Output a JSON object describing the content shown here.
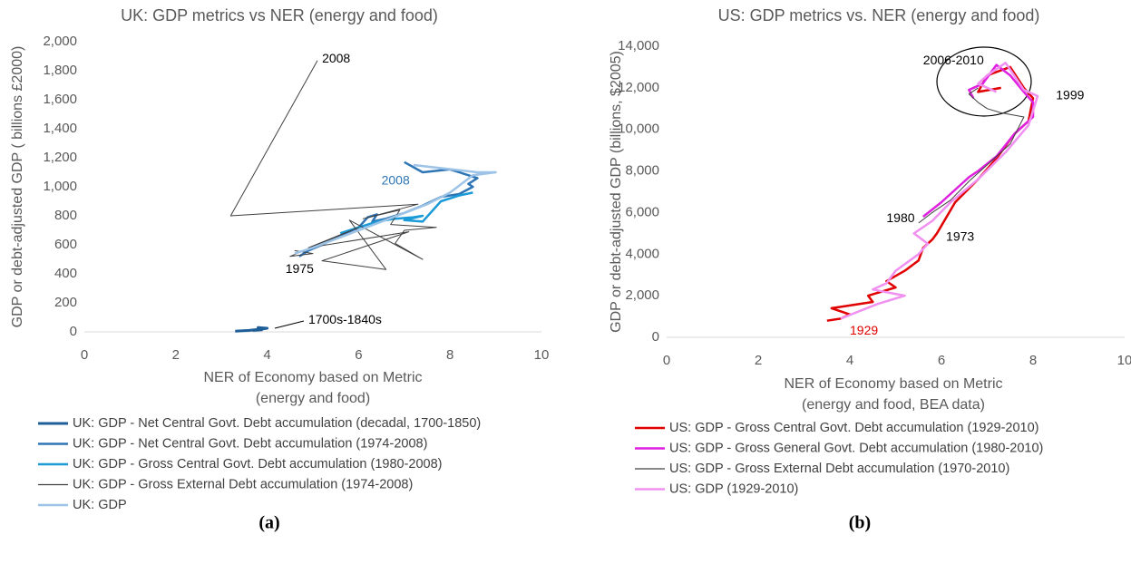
{
  "chart_data": [
    {
      "type": "line",
      "title": "UK: GDP metrics vs NER (energy and food)",
      "xlabel": [
        "NER of Economy based on Metric",
        "(energy and food)"
      ],
      "ylabel": "GDP or debt-adjusted GDP ( billions £2000)",
      "xlim": [
        0,
        10
      ],
      "xticks": [
        0,
        2,
        4,
        6,
        8,
        10
      ],
      "ylim": [
        0,
        2000
      ],
      "yticks": [
        0,
        200,
        400,
        600,
        800,
        {
          "value": 1000,
          "label": "1,000"
        },
        {
          "value": 1200,
          "label": "1,200"
        },
        {
          "value": 1400,
          "label": "1,400"
        },
        {
          "value": 1600,
          "label": "1,600"
        },
        {
          "value": 1800,
          "label": "1,800"
        },
        {
          "value": 2000,
          "label": "2,000"
        }
      ],
      "grid": false,
      "series": [
        {
          "name": "UK: GDP - Net Central Govt. Debt accumulation (decadal, 1700-1850)",
          "color": "#1f5f99",
          "width": 3,
          "x": [
            3.3,
            3.6,
            3.9,
            3.8,
            4.0,
            3.7,
            3.9
          ],
          "values": [
            5,
            10,
            20,
            30,
            25,
            10,
            15
          ]
        },
        {
          "name": "UK: GDP - Net Central Govt. Debt accumulation (1974-2008)",
          "color": "#2e75b6",
          "width": 2.5,
          "x": [
            4.7,
            4.9,
            5.2,
            5.5,
            6.0,
            6.2,
            6.4,
            6.3,
            6.6,
            7.0,
            7.4,
            7.8,
            8.2,
            8.5,
            8.4,
            8.6,
            8.0,
            7.4,
            7.0
          ],
          "values": [
            520,
            560,
            600,
            650,
            720,
            790,
            810,
            760,
            780,
            820,
            870,
            930,
            950,
            1000,
            1020,
            1060,
            1120,
            1100,
            1170
          ]
        },
        {
          "name": "UK: GDP - Gross Central Govt. Debt accumulation (1980-2008)",
          "color": "#1a9ad6",
          "width": 2.5,
          "x": [
            5.6,
            6.0,
            6.4,
            6.8,
            7.2,
            7.4,
            7.0,
            7.4,
            7.8,
            8.2,
            8.5
          ],
          "values": [
            680,
            720,
            760,
            780,
            790,
            800,
            770,
            760,
            900,
            940,
            960
          ]
        },
        {
          "name": "UK: GDP - Gross External Debt accumulation (1974-2008)",
          "color": "#404040",
          "width": 1,
          "x": [
            4.6,
            5.0,
            4.5,
            6.0,
            4.9,
            7.1,
            5.2,
            6.6,
            5.8,
            7.4,
            6.8,
            7.0,
            7.7,
            6.7,
            6.9,
            6.1,
            7.3,
            3.2,
            5.1
          ],
          "values": [
            560,
            540,
            520,
            720,
            580,
            690,
            490,
            430,
            770,
            500,
            610,
            700,
            720,
            740,
            840,
            780,
            880,
            800,
            1870
          ]
        },
        {
          "name": "UK: GDP",
          "color": "#9dc3e6",
          "width": 2.5,
          "x": [
            4.6,
            5.0,
            5.5,
            6.0,
            6.5,
            7.0,
            7.5,
            8.0,
            8.5,
            9.0,
            8.6,
            7.2
          ],
          "values": [
            540,
            580,
            640,
            700,
            760,
            820,
            880,
            960,
            1080,
            1100,
            1100,
            1150
          ]
        }
      ],
      "annotations": [
        {
          "text": "2008",
          "x": 5.2,
          "y": 1880
        },
        {
          "text": "2008",
          "x": 6.5,
          "y": 1040,
          "color": "#2e75b6"
        },
        {
          "text": "1975",
          "x": 4.4,
          "y": 430
        },
        {
          "text": "1700s-1840s",
          "x": 4.9,
          "y": 80
        }
      ]
    },
    {
      "type": "line",
      "title": "US: GDP metrics vs. NER (energy and food)",
      "xlabel": [
        "NER of Economy based on Metric",
        "(energy and food, BEA data)"
      ],
      "ylabel": "GDP or debt-adjusted GDP (billions, $2005)",
      "xlim": [
        0,
        10
      ],
      "xticks": [
        0,
        2,
        4,
        6,
        8,
        10
      ],
      "ylim": [
        0,
        14000
      ],
      "yticks": [
        0,
        {
          "value": 2000,
          "label": "2,000"
        },
        {
          "value": 4000,
          "label": "4,000"
        },
        {
          "value": 6000,
          "label": "6,000"
        },
        {
          "value": 8000,
          "label": "8,000"
        },
        {
          "value": 10000,
          "label": "10,000"
        },
        {
          "value": 12000,
          "label": "12,000"
        },
        {
          "value": 14000,
          "label": "14,000"
        }
      ],
      "grid": false,
      "series": [
        {
          "name": "US: GDP - Gross Central Govt. Debt accumulation (1929-2010)",
          "color": "#e00000",
          "width": 2.5,
          "x": [
            3.5,
            3.8,
            4.0,
            3.6,
            3.9,
            4.5,
            4.4,
            5.0,
            4.8,
            5.2,
            5.5,
            5.6,
            5.8,
            5.9,
            6.3,
            6.8,
            7.2,
            7.6,
            7.9,
            8.0,
            7.8,
            7.5,
            7.0,
            6.8,
            7.3
          ],
          "values": [
            800,
            900,
            1100,
            1400,
            1500,
            1700,
            2000,
            2400,
            2700,
            3200,
            3700,
            4300,
            4700,
            5000,
            6500,
            7600,
            8600,
            9800,
            10400,
            11500,
            12000,
            13000,
            12600,
            11800,
            12000
          ]
        },
        {
          "name": "US: GDP - Gross General Govt. Debt accumulation (1980-2010)",
          "color": "#e020e0",
          "width": 2.5,
          "x": [
            5.6,
            6.0,
            6.5,
            6.6,
            6.8,
            7.2,
            7.6,
            8.0,
            8.0,
            7.8,
            7.5,
            7.2,
            6.9,
            6.6,
            6.7
          ],
          "values": [
            5800,
            6500,
            7500,
            7700,
            8000,
            8700,
            9800,
            10600,
            11300,
            11800,
            12600,
            13100,
            12200,
            11900,
            11500
          ]
        },
        {
          "name": "US: GDP - Gross External Debt accumulation (1970-2010)",
          "color": "#404040",
          "width": 1,
          "x": [
            5.5,
            5.8,
            6.2,
            6.6,
            7.0,
            7.5,
            7.8,
            7.3,
            7.0,
            6.8,
            6.6,
            6.8
          ],
          "values": [
            5500,
            6000,
            6600,
            7500,
            8300,
            9300,
            10600,
            10800,
            11000,
            11300,
            11700,
            12000
          ]
        },
        {
          "name": "US: GDP (1929-2010)",
          "color": "#f090f0",
          "width": 2.5,
          "x": [
            3.8,
            4.6,
            5.2,
            4.5,
            4.8,
            5.0,
            5.5,
            5.7,
            5.4,
            5.8,
            6.2,
            6.8,
            7.4,
            7.9,
            8.1,
            7.8,
            7.4,
            7.0,
            6.8,
            7.2
          ],
          "values": [
            900,
            1600,
            2000,
            2300,
            2600,
            3200,
            4000,
            4500,
            5000,
            5600,
            6500,
            7600,
            8900,
            10200,
            11600,
            11900,
            13200,
            12600,
            12200,
            11800
          ]
        }
      ],
      "annotations": [
        {
          "text": "2006-2010",
          "x": 5.6,
          "y": 13300
        },
        {
          "text": "1999",
          "x": 8.5,
          "y": 11600
        },
        {
          "text": "1980",
          "x": 4.8,
          "y": 5700
        },
        {
          "text": "1973",
          "x": 6.1,
          "y": 4800
        },
        {
          "text": "1929",
          "x": 4.0,
          "y": 300,
          "color": "#e00000"
        }
      ]
    }
  ],
  "figure_labels": [
    "(a)",
    "(b)"
  ]
}
